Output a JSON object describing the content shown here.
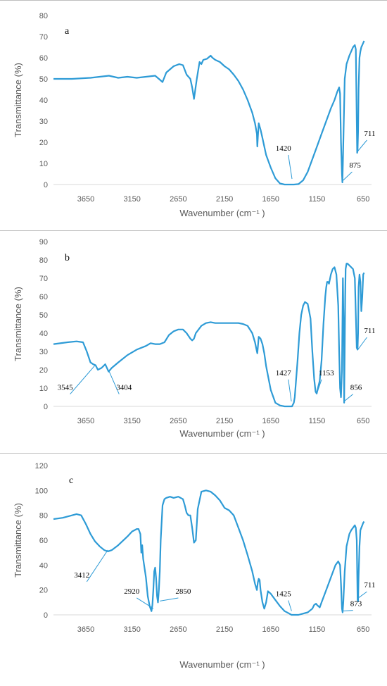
{
  "chart_data": [
    {
      "type": "line",
      "panel_label": "a",
      "xlabel": "Wavenumber (cm⁻¹ )",
      "ylabel": "Transmittance (%)",
      "xlim": [
        4000,
        560
      ],
      "ylim": [
        0,
        80
      ],
      "y_ticks": [
        0,
        10,
        20,
        30,
        40,
        50,
        60,
        70,
        80
      ],
      "x_ticks": [
        3650,
        3150,
        2650,
        2150,
        1650,
        1150,
        650
      ],
      "grid": false,
      "annotations": [
        {
          "text": "1420",
          "x": 1420,
          "y": 2,
          "text_x": 1460,
          "text_y": 16
        },
        {
          "text": "875",
          "x": 875,
          "y": 1,
          "text_x": 770,
          "text_y": 8
        },
        {
          "text": "711",
          "x": 711,
          "y": 15,
          "text_x": 610,
          "text_y": 23
        }
      ],
      "series": [
        {
          "x": [
            4000,
            3800,
            3600,
            3500,
            3400,
            3300,
            3200,
            3100,
            3000,
            2900,
            2860,
            2820,
            2780,
            2700,
            2640,
            2600,
            2560,
            2520,
            2500,
            2480,
            2450,
            2420,
            2400,
            2380,
            2340,
            2300,
            2280,
            2250,
            2200,
            2150,
            2100,
            2050,
            2000,
            1950,
            1900,
            1850,
            1820,
            1800,
            1795,
            1790,
            1780,
            1760,
            1740,
            1720,
            1700,
            1650,
            1600,
            1550,
            1500,
            1450,
            1400,
            1350,
            1300,
            1250,
            1200,
            1150,
            1100,
            1050,
            1000,
            960,
            930,
            910,
            900,
            890,
            880,
            875,
            870,
            860,
            850,
            830,
            800,
            780,
            760,
            740,
            730,
            720,
            715,
            711,
            705,
            700,
            690,
            680,
            670,
            660,
            650,
            640
          ],
          "y": [
            50,
            50,
            50.5,
            51,
            51.5,
            50.5,
            51,
            50.5,
            51,
            51.5,
            50,
            48.5,
            53,
            56,
            57,
            56.5,
            52,
            50,
            46,
            40.5,
            50,
            58,
            57,
            59,
            59.5,
            61,
            60,
            59,
            58,
            56,
            54.5,
            52,
            49,
            45,
            40,
            34,
            29,
            24,
            18,
            22,
            29,
            26,
            22,
            18,
            14,
            8,
            3,
            0.5,
            0,
            0,
            0,
            0.2,
            2,
            6,
            12,
            18,
            24,
            30,
            36,
            40,
            44,
            46,
            43,
            20,
            5,
            1,
            10,
            30,
            50,
            57,
            61,
            63,
            65,
            66,
            64,
            30,
            15,
            16,
            25,
            45,
            60,
            63,
            65,
            66,
            67,
            68
          ]
        }
      ]
    },
    {
      "type": "line",
      "panel_label": "b",
      "xlabel": "Wavenumber (cm⁻¹ )",
      "ylabel": "Transmittance (%)",
      "xlim": [
        4000,
        560
      ],
      "ylim": [
        0,
        90
      ],
      "y_ticks": [
        0,
        10,
        20,
        30,
        40,
        50,
        60,
        70,
        80,
        90
      ],
      "x_ticks": [
        3650,
        3150,
        2650,
        2150,
        1650,
        1150,
        650
      ],
      "grid": false,
      "annotations": [
        {
          "text": "3545",
          "x": 3545,
          "y": 22,
          "text_x": 3820,
          "text_y": 9
        },
        {
          "text": "3404",
          "x": 3404,
          "y": 19,
          "text_x": 3290,
          "text_y": 9
        },
        {
          "text": "1427",
          "x": 1427,
          "y": 2,
          "text_x": 1460,
          "text_y": 17
        },
        {
          "text": "1153",
          "x": 1153,
          "y": 6,
          "text_x": 1100,
          "text_y": 17
        },
        {
          "text": "856",
          "x": 856,
          "y": 2,
          "text_x": 760,
          "text_y": 9
        },
        {
          "text": "711",
          "x": 711,
          "y": 30,
          "text_x": 610,
          "text_y": 40
        }
      ],
      "series": [
        {
          "x": [
            4000,
            3850,
            3750,
            3680,
            3640,
            3600,
            3570,
            3545,
            3520,
            3480,
            3440,
            3404,
            3370,
            3300,
            3200,
            3100,
            3000,
            2950,
            2900,
            2850,
            2800,
            2750,
            2700,
            2650,
            2600,
            2560,
            2520,
            2500,
            2480,
            2460,
            2400,
            2350,
            2300,
            2250,
            2200,
            2150,
            2100,
            2050,
            2000,
            1950,
            1900,
            1850,
            1820,
            1800,
            1795,
            1790,
            1780,
            1760,
            1740,
            1720,
            1700,
            1650,
            1600,
            1550,
            1500,
            1450,
            1420,
            1400,
            1390,
            1380,
            1360,
            1340,
            1320,
            1300,
            1280,
            1250,
            1220,
            1200,
            1180,
            1165,
            1153,
            1140,
            1120,
            1100,
            1080,
            1060,
            1050,
            1040,
            1030,
            1020,
            1000,
            980,
            960,
            940,
            920,
            910,
            900,
            890,
            880,
            870,
            860,
            856,
            850,
            845,
            840,
            830,
            820,
            800,
            780,
            760,
            740,
            730,
            720,
            711,
            705,
            700,
            690,
            680,
            670,
            660,
            650,
            640
          ],
          "y": [
            34,
            35,
            35.5,
            35,
            30,
            24,
            23,
            22.5,
            20,
            21,
            23,
            19,
            21,
            24,
            28,
            31,
            33,
            34.5,
            34,
            34,
            35,
            39,
            41,
            42,
            42,
            40,
            37,
            36,
            37,
            40,
            44,
            45.5,
            46,
            45.5,
            45.5,
            45.5,
            45.5,
            45.5,
            45.5,
            45,
            44,
            40,
            35,
            30,
            29,
            32,
            38,
            37,
            34,
            29,
            22,
            9,
            2,
            0.5,
            0,
            0,
            0,
            2,
            5,
            12,
            25,
            40,
            50,
            55,
            57,
            56,
            48,
            30,
            15,
            8,
            7,
            10,
            14,
            25,
            45,
            60,
            65,
            68,
            68,
            67,
            72,
            75,
            76,
            72,
            55,
            30,
            10,
            5,
            20,
            70,
            36,
            2,
            30,
            60,
            75,
            78,
            78,
            77,
            76,
            75,
            70,
            50,
            32,
            31,
            40,
            65,
            72,
            68,
            52,
            60,
            72,
            73
          ]
        }
      ]
    },
    {
      "type": "line",
      "panel_label": "c",
      "xlabel": "Wavenumber (cm⁻¹ )",
      "ylabel": "Transmittance (%)",
      "xlim": [
        4000,
        560
      ],
      "ylim": [
        0,
        120
      ],
      "y_ticks": [
        0,
        20,
        40,
        60,
        80,
        100,
        120
      ],
      "x_ticks": [
        3650,
        3150,
        2650,
        2150,
        1650,
        1150,
        650
      ],
      "grid": false,
      "annotations": [
        {
          "text": "3412",
          "x": 3412,
          "y": 51,
          "text_x": 3640,
          "text_y": 30
        },
        {
          "text": "2920",
          "x": 2920,
          "y": 4,
          "text_x": 3100,
          "text_y": 17
        },
        {
          "text": "2850",
          "x": 2850,
          "y": 10,
          "text_x": 2650,
          "text_y": 17
        },
        {
          "text": "1425",
          "x": 1425,
          "y": 2,
          "text_x": 1460,
          "text_y": 15
        },
        {
          "text": "873",
          "x": 873,
          "y": 2,
          "text_x": 760,
          "text_y": 7
        },
        {
          "text": "711",
          "x": 711,
          "y": 12,
          "text_x": 610,
          "text_y": 22
        }
      ],
      "series": [
        {
          "x": [
            4000,
            3900,
            3800,
            3750,
            3700,
            3650,
            3600,
            3550,
            3500,
            3450,
            3412,
            3370,
            3300,
            3200,
            3150,
            3100,
            3080,
            3060,
            3050,
            3040,
            3030,
            3000,
            2980,
            2960,
            2940,
            2930,
            2920,
            2910,
            2900,
            2890,
            2880,
            2870,
            2860,
            2850,
            2840,
            2820,
            2800,
            2780,
            2740,
            2700,
            2650,
            2600,
            2580,
            2560,
            2540,
            2520,
            2500,
            2480,
            2460,
            2440,
            2400,
            2350,
            2300,
            2250,
            2200,
            2150,
            2100,
            2050,
            2000,
            1950,
            1900,
            1850,
            1820,
            1800,
            1790,
            1780,
            1770,
            1760,
            1740,
            1720,
            1700,
            1680,
            1650,
            1600,
            1550,
            1500,
            1450,
            1425,
            1400,
            1350,
            1300,
            1250,
            1200,
            1180,
            1160,
            1150,
            1120,
            1100,
            1050,
            1000,
            950,
            920,
            900,
            890,
            880,
            873,
            865,
            850,
            830,
            800,
            780,
            760,
            740,
            730,
            720,
            711,
            705,
            700,
            690,
            680,
            670,
            660,
            650,
            640
          ],
          "y": [
            77,
            78,
            80,
            81,
            80,
            73,
            65,
            59,
            55,
            52,
            51,
            52,
            56,
            63,
            67,
            69,
            69,
            65,
            50,
            56,
            45,
            30,
            15,
            7,
            3,
            8,
            20,
            35,
            38,
            30,
            15,
            10,
            20,
            35,
            60,
            88,
            93,
            94,
            95,
            94,
            95,
            93,
            88,
            82,
            80,
            80,
            70,
            58,
            60,
            85,
            99,
            100,
            99,
            96,
            92,
            86,
            84,
            80,
            70,
            60,
            48,
            35,
            25,
            20,
            26,
            29,
            28,
            20,
            10,
            5,
            10,
            19,
            17,
            12,
            7,
            3,
            1,
            0,
            0,
            0,
            1,
            2,
            5,
            8,
            9,
            8,
            6,
            10,
            20,
            30,
            40,
            43,
            40,
            25,
            5,
            2,
            10,
            35,
            55,
            65,
            68,
            70,
            72,
            70,
            60,
            12,
            11,
            30,
            55,
            68,
            70,
            72,
            74,
            75
          ]
        }
      ]
    }
  ]
}
